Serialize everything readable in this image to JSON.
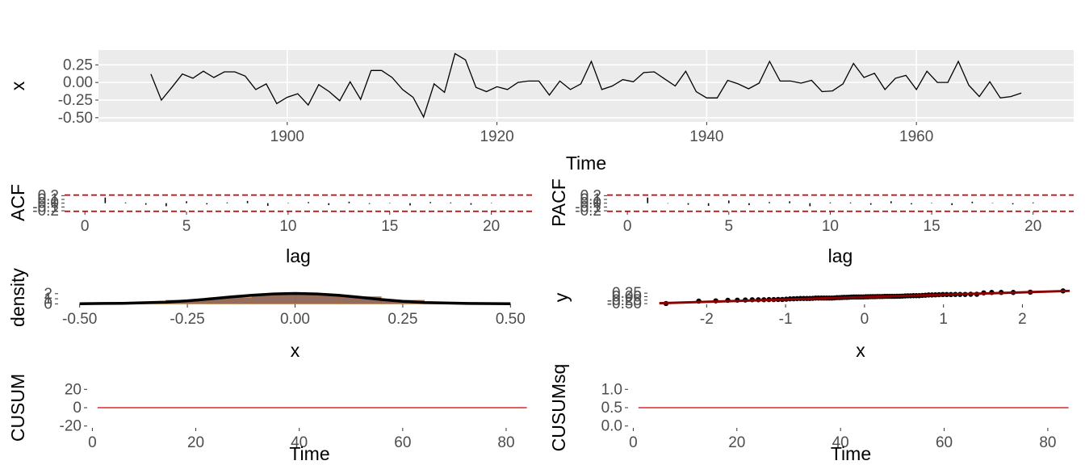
{
  "colors": {
    "panel_bg": "#ebebeb",
    "grid": "#ffffff",
    "series": "#000000",
    "ci": "#cc0000",
    "density_fill": "#8b5e4c",
    "qq_line": "#8b0000"
  },
  "chart_data": [
    {
      "id": "ts",
      "type": "line",
      "xlabel": "Time",
      "ylabel": "x",
      "xlim": [
        1882,
        1975
      ],
      "ylim": [
        -0.56,
        0.46
      ],
      "x_ticks": [
        "1900",
        "1920",
        "1940",
        "1960"
      ],
      "x_tick_values": [
        1900,
        1920,
        1940,
        1960
      ],
      "y_ticks": [
        "0.25",
        "0.00",
        "-0.25",
        "-0.50"
      ],
      "y_tick_values": [
        0.25,
        0,
        -0.25,
        -0.5
      ],
      "x_start": 1887,
      "x_step": 1,
      "values": [
        0.12,
        -0.25,
        -0.07,
        0.12,
        0.06,
        0.16,
        0.07,
        0.15,
        0.15,
        0.09,
        -0.1,
        -0.02,
        -0.3,
        -0.21,
        -0.16,
        -0.32,
        -0.03,
        -0.13,
        -0.26,
        0.01,
        -0.24,
        0.17,
        0.17,
        0.07,
        -0.1,
        -0.21,
        -0.49,
        -0.02,
        -0.14,
        0.41,
        0.32,
        -0.07,
        -0.13,
        -0.06,
        -0.1,
        0,
        0.02,
        0.02,
        -0.18,
        0.02,
        -0.1,
        -0.02,
        0.3,
        -0.1,
        -0.05,
        0.04,
        0.01,
        0.14,
        0.15,
        0.05,
        -0.05,
        0.16,
        -0.13,
        -0.22,
        -0.22,
        0.03,
        -0.02,
        -0.09,
        -0.01,
        0.3,
        0.02,
        0.02,
        -0.01,
        0.03,
        -0.13,
        -0.12,
        -0.02,
        0.27,
        0.07,
        0.13,
        -0.1,
        0.06,
        0.1,
        -0.1,
        0.16,
        0,
        0,
        0.3,
        -0.04,
        -0.2,
        0.01,
        -0.22,
        -0.2,
        -0.15
      ]
    },
    {
      "id": "acf",
      "type": "bar",
      "xlabel": "lag",
      "ylabel": "ACF",
      "xlim": [
        -1,
        22
      ],
      "ylim": [
        -0.22,
        0.25
      ],
      "x_ticks": [
        "0",
        "5",
        "10",
        "15",
        "20"
      ],
      "x_tick_values": [
        0,
        5,
        10,
        15,
        20
      ],
      "y_ticks": [
        "0.2",
        "0.1",
        "0.0",
        "-0.1",
        "-0.2"
      ],
      "y_tick_values": [
        0.2,
        0.1,
        0,
        -0.1,
        -0.2
      ],
      "ci": 0.215,
      "lags": [
        1,
        2,
        3,
        4,
        5,
        6,
        7,
        8,
        9,
        10,
        11,
        12,
        13,
        14,
        15,
        16,
        17,
        18,
        19,
        20
      ],
      "values": [
        0.15,
        0.02,
        -0.04,
        -0.08,
        0.05,
        -0.03,
        0.02,
        0.06,
        -0.07,
        0.01,
        0.03,
        -0.05,
        0.04,
        -0.02,
        0.01,
        -0.06,
        0.03,
        0.02,
        -0.04,
        0.01
      ]
    },
    {
      "id": "pacf",
      "type": "bar",
      "xlabel": "lag",
      "ylabel": "PACF",
      "xlim": [
        -1,
        22
      ],
      "ylim": [
        -0.22,
        0.25
      ],
      "x_ticks": [
        "0",
        "5",
        "10",
        "15",
        "20"
      ],
      "x_tick_values": [
        0,
        5,
        10,
        15,
        20
      ],
      "y_ticks": [
        "0.2",
        "0.1",
        "0.0",
        "-0.1",
        "-0.2"
      ],
      "y_tick_values": [
        0.2,
        0.1,
        0,
        -0.1,
        -0.2
      ],
      "ci": 0.215,
      "lags": [
        1,
        2,
        3,
        4,
        5,
        6,
        7,
        8,
        9,
        10,
        11,
        12,
        13,
        14,
        15,
        16,
        17,
        18,
        19,
        20
      ],
      "values": [
        0.15,
        -0.01,
        -0.04,
        -0.07,
        0.07,
        -0.05,
        0.03,
        0.05,
        -0.08,
        0.02,
        0.02,
        -0.04,
        0.05,
        -0.03,
        0.01,
        -0.05,
        0.04,
        0.01,
        -0.03,
        0.02
      ]
    },
    {
      "id": "density",
      "type": "area",
      "xlabel": "x",
      "ylabel": "density",
      "xlim": [
        -0.55,
        0.55
      ],
      "ylim": [
        -0.1,
        2.6
      ],
      "x_ticks": [
        "-0.50",
        "-0.25",
        "0.00",
        "0.25",
        "0.50"
      ],
      "x_tick_values": [
        -0.5,
        -0.25,
        0,
        0.25,
        0.5
      ],
      "y_ticks": [
        "2",
        "1",
        "0"
      ],
      "y_tick_values": [
        2,
        1,
        0
      ],
      "density_x": [
        -0.5,
        -0.4,
        -0.3,
        -0.25,
        -0.2,
        -0.15,
        -0.1,
        -0.05,
        0,
        0.05,
        0.1,
        0.15,
        0.2,
        0.25,
        0.3,
        0.4,
        0.5
      ],
      "density_y": [
        0.03,
        0.1,
        0.35,
        0.6,
        0.95,
        1.35,
        1.7,
        1.95,
        2.05,
        1.95,
        1.7,
        1.3,
        0.85,
        0.5,
        0.25,
        0.08,
        0.02
      ],
      "hist_breaks": [
        -0.5,
        -0.4,
        -0.3,
        -0.2,
        -0.1,
        0,
        0.1,
        0.2,
        0.3,
        0.4,
        0.5
      ],
      "hist_values": [
        0.1,
        0.3,
        0.7,
        1.2,
        1.8,
        1.9,
        1.4,
        0.7,
        0.25,
        0.05
      ]
    },
    {
      "id": "qq",
      "type": "scatter",
      "xlabel": "x",
      "ylabel": "y",
      "xlim": [
        -2.75,
        2.65
      ],
      "ylim": [
        -0.55,
        0.43
      ],
      "x_ticks": [
        "-2",
        "-1",
        "0",
        "1",
        "2"
      ],
      "x_tick_values": [
        -2,
        -1,
        0,
        1,
        2
      ],
      "y_ticks": [
        "0.25",
        "0.00",
        "-0.25",
        "-0.50"
      ],
      "y_tick_values": [
        0.25,
        0,
        -0.25,
        -0.5
      ],
      "line_slope": 0.17,
      "line_intercept": -0.03
    },
    {
      "id": "cusum",
      "type": "line",
      "xlabel": "Time",
      "ylabel": "CUSUM",
      "xlim": [
        -1,
        85
      ],
      "ylim": [
        -22,
        22
      ],
      "x_ticks": [
        "0",
        "20",
        "40",
        "60",
        "80"
      ],
      "x_tick_values": [
        0,
        20,
        40,
        60,
        80
      ],
      "y_ticks": [
        "20",
        "0",
        "-20"
      ],
      "y_tick_values": [
        20,
        0,
        -20
      ],
      "x": [
        1,
        84
      ],
      "values": [
        0,
        0
      ]
    },
    {
      "id": "cusumsq",
      "type": "line",
      "xlabel": "Time",
      "ylabel": "CUSUMsq",
      "xlim": [
        -1,
        85
      ],
      "ylim": [
        -0.05,
        1.05
      ],
      "x_ticks": [
        "0",
        "20",
        "40",
        "60",
        "80"
      ],
      "x_tick_values": [
        0,
        20,
        40,
        60,
        80
      ],
      "y_ticks": [
        "1.0",
        "0.5",
        "0.0"
      ],
      "y_tick_values": [
        1,
        0.5,
        0
      ],
      "x": [
        1,
        84
      ],
      "values": [
        0.5,
        0.5
      ]
    }
  ]
}
